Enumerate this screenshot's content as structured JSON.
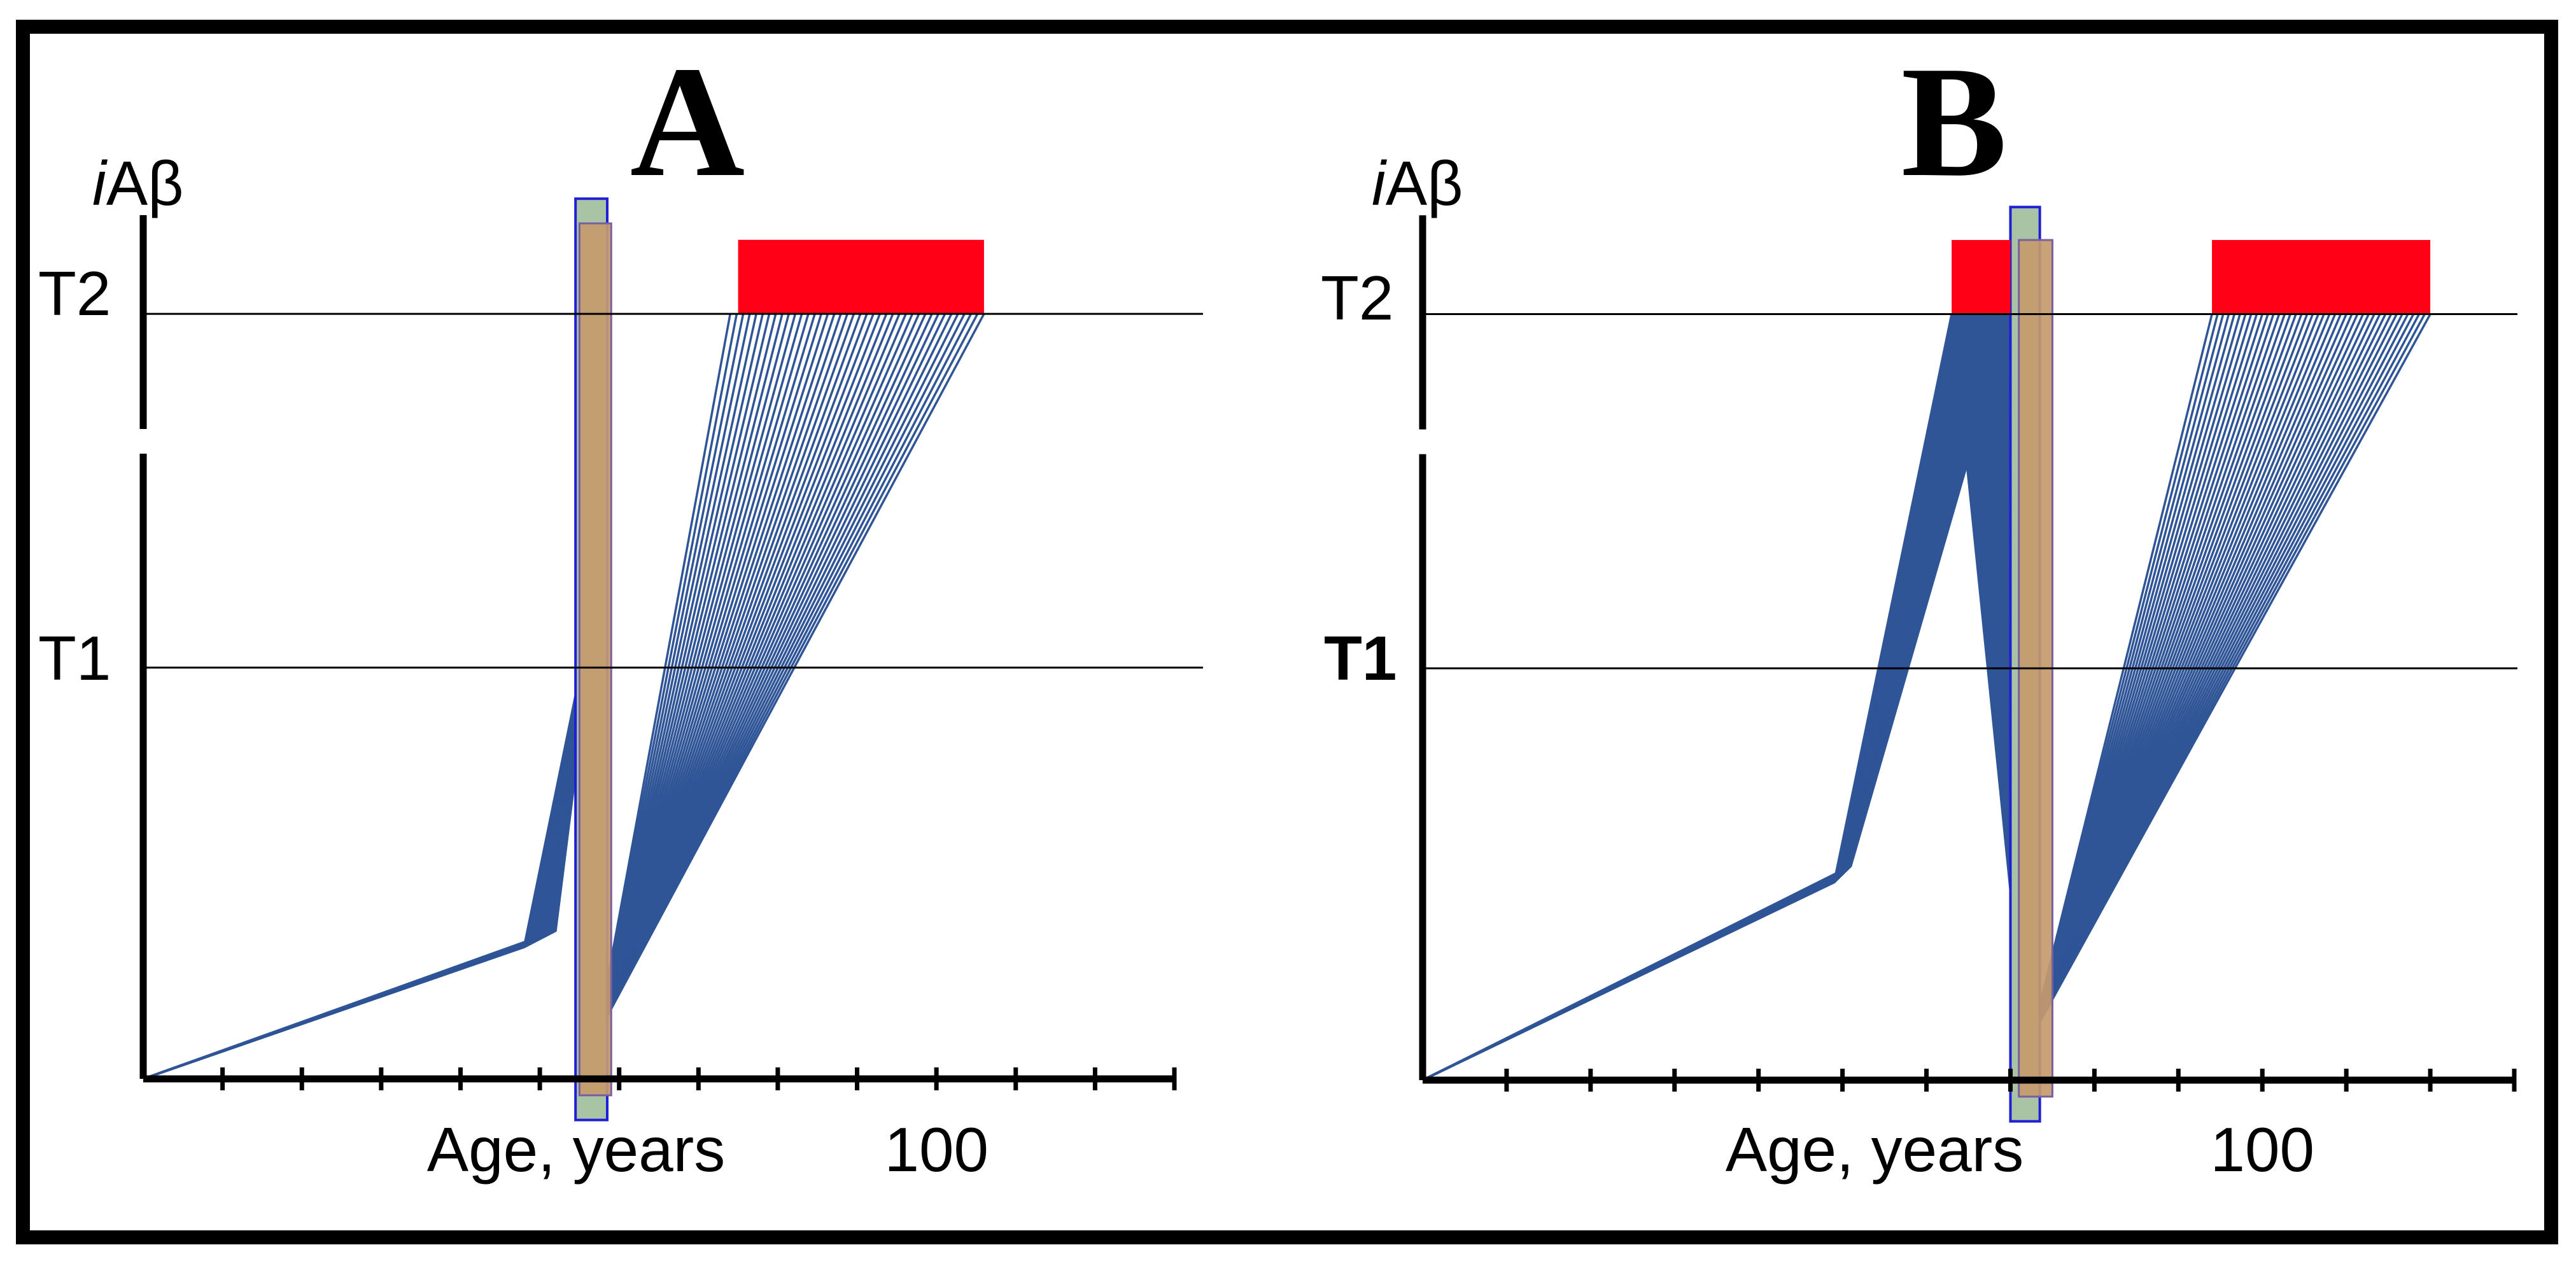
{
  "chart_data": [
    {
      "type": "line",
      "panel": "A",
      "title": "A",
      "ylabel_italic": "i",
      "ylabel_rest": "Aβ",
      "xlabel": "Age, years",
      "x_tick_label": "100",
      "x_tick_label_value": 100,
      "xlim": [
        0,
        130
      ],
      "ylim": [
        0,
        1.18
      ],
      "thresholds": [
        {
          "name": "T1",
          "value": 0.5
        },
        {
          "name": "T2",
          "value": 0.93
        }
      ],
      "axis_break_y": [
        0.76,
        0.79
      ],
      "x_ticks": [
        10,
        20,
        30,
        40,
        50,
        60,
        70,
        80,
        90,
        100,
        110,
        120,
        130
      ],
      "start": [
        0,
        0
      ],
      "trajectories": {
        "count": 40,
        "knee": [
          50,
          0.17
        ],
        "rise_peak": [
          55,
          0.49
        ],
        "trough": [
          57,
          0.04
        ],
        "end_x_range": [
          74,
          106
        ],
        "end_y": 0.93,
        "early": false
      },
      "vertical_bands": [
        {
          "name": "band-outer",
          "x0": 54.5,
          "x1": 58.5,
          "y0": -0.05,
          "y1": 1.07
        },
        {
          "name": "band-inner",
          "x0": 55,
          "x1": 59,
          "y0": -0.02,
          "y1": 1.04
        }
      ],
      "red_regions": [
        {
          "x0": 75,
          "x1": 106,
          "y0": 0.93,
          "y1": 1.02
        }
      ]
    },
    {
      "type": "line",
      "panel": "B",
      "title": "B",
      "ylabel_italic": "i",
      "ylabel_rest": "Aβ",
      "xlabel": "Age, years",
      "x_tick_label": "100",
      "x_tick_label_value": 100,
      "xlim": [
        0,
        130
      ],
      "ylim": [
        0,
        1.18
      ],
      "thresholds": [
        {
          "name": "T1",
          "value": 0.5
        },
        {
          "name": "T2",
          "value": 0.93
        }
      ],
      "axis_break_y": [
        0.76,
        0.79
      ],
      "x_ticks": [
        10,
        20,
        30,
        40,
        50,
        60,
        70,
        80,
        90,
        100,
        110,
        120,
        130
      ],
      "start": [
        0,
        0
      ],
      "trajectories": {
        "count": 40,
        "knee": [
          50,
          0.26
        ],
        "early_end_x_range": [
          63,
          70
        ],
        "end_y": 0.93,
        "trough": [
          72,
          0.03
        ],
        "end_x_range": [
          94,
          120
        ],
        "early": true
      },
      "vertical_bands": [
        {
          "name": "band-outer",
          "x0": 70,
          "x1": 73.5,
          "y0": -0.05,
          "y1": 1.06
        },
        {
          "name": "band-inner",
          "x0": 71,
          "x1": 75,
          "y0": -0.02,
          "y1": 1.02
        }
      ],
      "red_regions": [
        {
          "x0": 63,
          "x1": 70,
          "y0": 0.93,
          "y1": 1.02
        },
        {
          "x0": 94,
          "x1": 120,
          "y0": 0.93,
          "y1": 1.02
        }
      ]
    }
  ]
}
